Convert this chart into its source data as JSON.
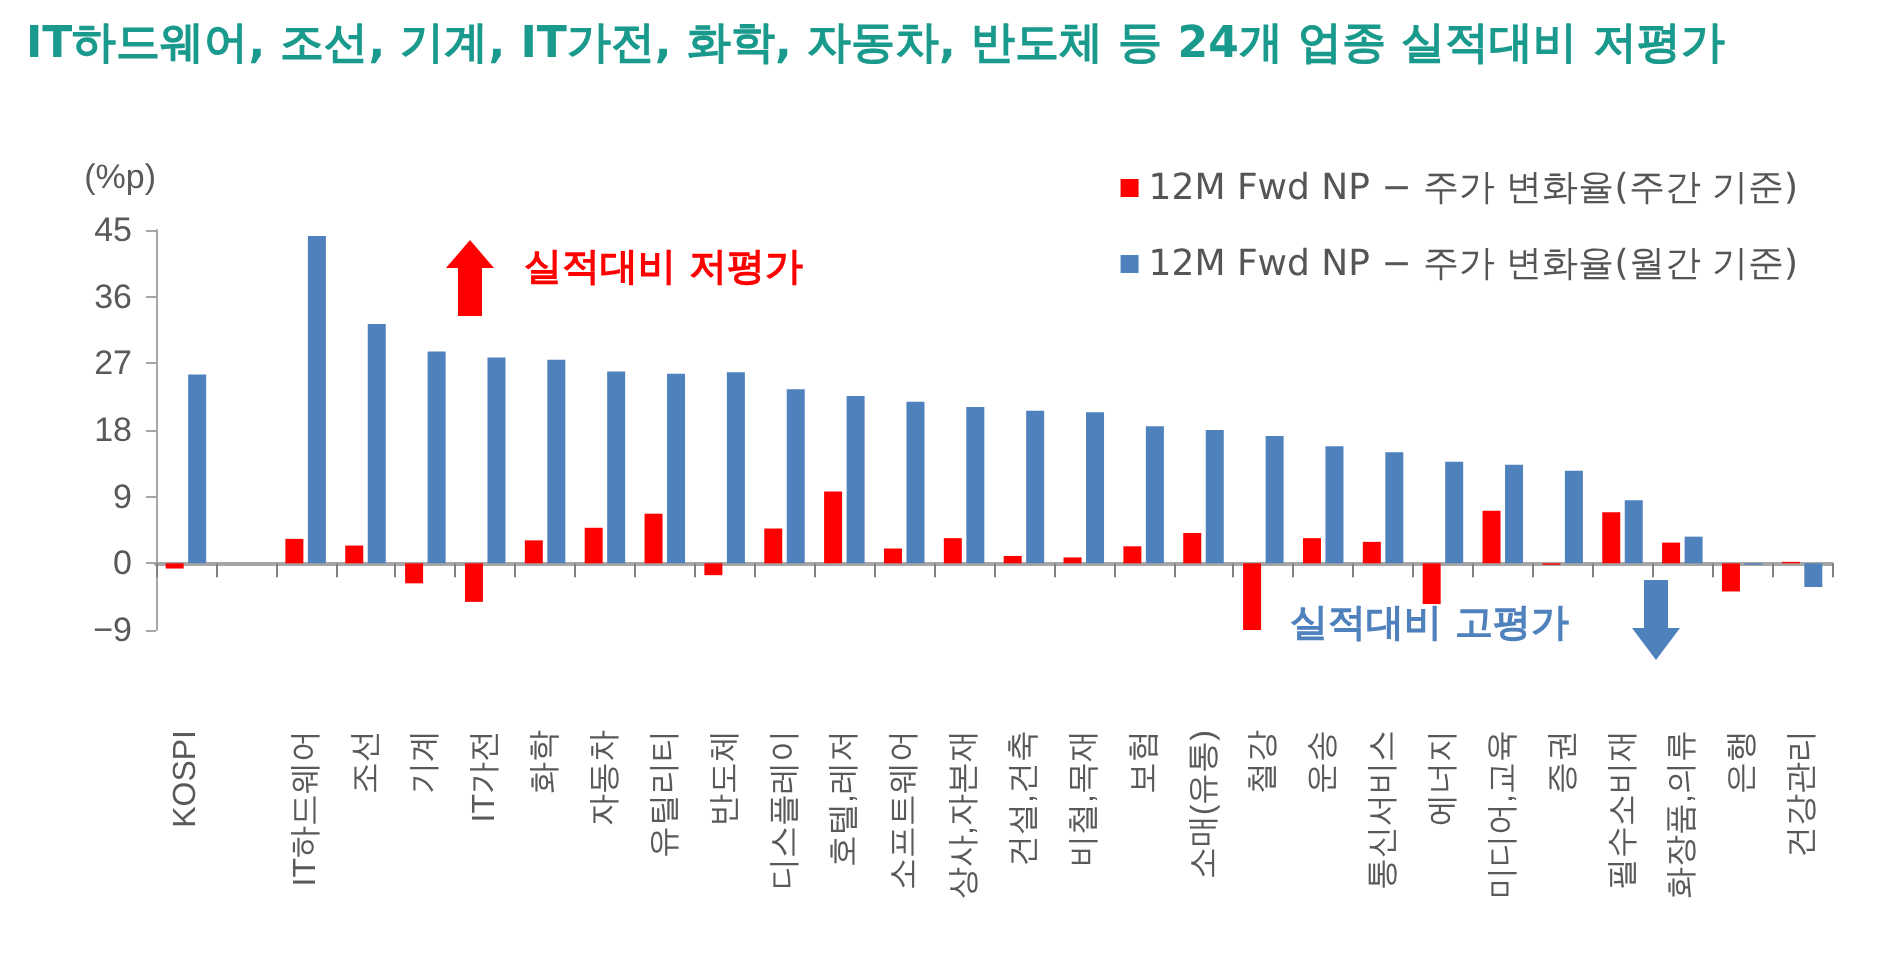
{
  "chart_data": {
    "type": "bar",
    "title": "IT하드웨어, 조선, 기계, IT가전, 화학, 자동차, 반도체 등 24개 업종 실적대비 저평가",
    "ylabel": "(%p)",
    "categories": [
      "KOSPI",
      null,
      "IT하드웨어",
      "조선",
      "기계",
      "IT가전",
      "화학",
      "자동차",
      "유틸리티",
      "반도체",
      "디스플레이",
      "호텔,레저",
      "소프트웨어",
      "상사,자본재",
      "건설,건축",
      "비철,목재",
      "보험",
      "소매(유통)",
      "철강",
      "운송",
      "통신서비스",
      "에너지",
      "미디어,교육",
      "증권",
      "필수소비재",
      "화장품,의류",
      "은행",
      "건강관리"
    ],
    "series": [
      {
        "name": "12M Fwd NP − 주가 변화율(주간 기준)",
        "color": "#ff0000",
        "values": [
          -0.7,
          null,
          3.3,
          2.4,
          -2.7,
          -5.2,
          3.1,
          4.8,
          6.7,
          -1.6,
          4.7,
          9.7,
          2.0,
          3.4,
          1.0,
          0.8,
          2.3,
          4.1,
          -9.0,
          3.4,
          2.9,
          -5.5,
          7.1,
          -0.2,
          6.9,
          2.8,
          -3.8,
          0.2
        ]
      },
      {
        "name": "12M Fwd NP − 주가 변화율(월간 기준)",
        "color": "#4f81bd",
        "values": [
          25.5,
          null,
          44.2,
          32.3,
          28.6,
          27.8,
          27.5,
          25.9,
          25.6,
          25.8,
          23.5,
          22.6,
          21.8,
          21.1,
          20.6,
          20.4,
          18.5,
          18.0,
          17.2,
          15.8,
          15.0,
          13.7,
          13.3,
          12.5,
          8.5,
          3.6,
          -0.2,
          -3.2
        ]
      }
    ],
    "ylim": [
      -9,
      45
    ],
    "yticks": [
      {
        "value": -9,
        "label": "−9"
      },
      0,
      9,
      18,
      27,
      36,
      45
    ],
    "annotations": [
      "실적대비 저평가",
      "실적대비 고평가"
    ],
    "legend": "top right"
  }
}
